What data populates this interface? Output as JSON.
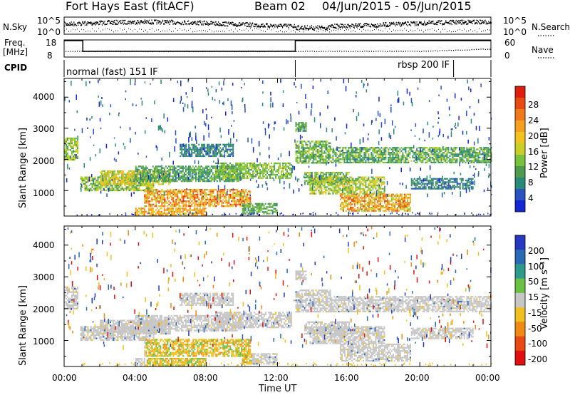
{
  "header": {
    "radar": "Fort Hays East (fitACF)",
    "beam": "Beam 02",
    "date_range": "04/Jun/2015 - 05/Jun/2015"
  },
  "strip_labels": {
    "nsky": "N.Sky",
    "nsky_ticks": [
      "10^5",
      "10^0"
    ],
    "nsearch": "N.Search",
    "freq_line1": "Freq.",
    "freq_line2": "[MHz]",
    "freq_ticks": [
      "18",
      "8"
    ],
    "nave": "Nave",
    "nave_ticks": [
      "60",
      "0"
    ],
    "cpid": "CPID",
    "mode1": "normal (fast) 151 IF",
    "mode2": "rbsp 200 IF"
  },
  "chart_data": [
    {
      "type": "heatmap",
      "panel": "power",
      "ylabel": "Slant Range [km]",
      "yticks": [
        "1000",
        "2000",
        "3000",
        "4000"
      ],
      "ylim": [
        180,
        4600
      ],
      "xlim": [
        0,
        24
      ],
      "xlabel": "",
      "colorbar": {
        "label": "Power [dB]",
        "ticks": [
          "4",
          "8",
          "12",
          "16",
          "20",
          "24",
          "28"
        ],
        "range": [
          0,
          32
        ],
        "colors": [
          "#1428d2",
          "#2a53c0",
          "#2a8a7a",
          "#4f9a4f",
          "#7ac23c",
          "#c8d028",
          "#f2c21e",
          "#f5a020",
          "#f07a1a",
          "#e84a14",
          "#e01e10"
        ]
      }
    },
    {
      "type": "heatmap",
      "panel": "velocity",
      "ylabel": "Slant Range [km]",
      "yticks": [
        "1000",
        "2000",
        "3000",
        "4000"
      ],
      "ylim": [
        180,
        4600
      ],
      "xlim": [
        0,
        24
      ],
      "xlabel": "Time UT",
      "xticks": [
        "00:00",
        "04:00",
        "08:00",
        "12:00",
        "16:00",
        "20:00",
        "00:00"
      ],
      "colorbar": {
        "label": "Velocity [m s⁻¹]",
        "ticks": [
          "200",
          "100",
          "50",
          "15",
          "-15",
          "-50",
          "-100",
          "-200"
        ],
        "colors": [
          "#2538c0",
          "#2a6ab4",
          "#2e9a8c",
          "#6cc043",
          "#c6c6c6",
          "#f0c020",
          "#f08a14",
          "#e84a14",
          "#e01010"
        ]
      }
    }
  ],
  "colors": {
    "axis": "#000000",
    "background": "#ffffff",
    "gray_scatter": "#c6c6c6"
  }
}
